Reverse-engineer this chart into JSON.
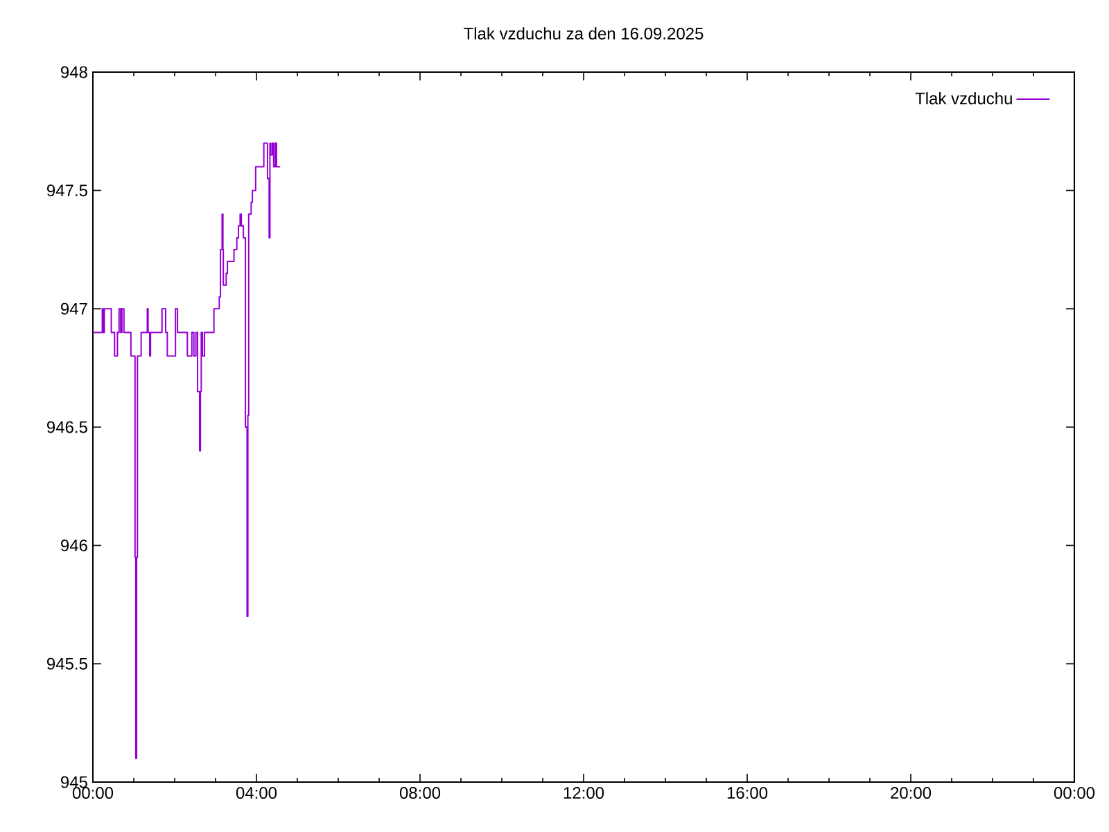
{
  "chart_data": {
    "type": "step",
    "title": "Tlak vzduchu za den 16.09.2025",
    "x": [
      0,
      0.23,
      0.25,
      0.28,
      0.45,
      0.53,
      0.6,
      0.64,
      0.68,
      0.71,
      0.76,
      0.93,
      1.03,
      1.05,
      1.07,
      1.09,
      1.18,
      1.33,
      1.35,
      1.39,
      1.41,
      1.69,
      1.78,
      1.82,
      2.02,
      2.07,
      2.31,
      2.42,
      2.47,
      2.52,
      2.56,
      2.61,
      2.63,
      2.65,
      2.68,
      2.73,
      2.96,
      3.09,
      3.12,
      3.16,
      3.18,
      3.19,
      3.26,
      3.29,
      3.45,
      3.52,
      3.56,
      3.6,
      3.63,
      3.68,
      3.73,
      3.77,
      3.79,
      3.81,
      3.87,
      3.9,
      3.98,
      4.18,
      4.27,
      4.31,
      4.33,
      4.35,
      4.39,
      4.42,
      4.46,
      4.49,
      4.58
    ],
    "series": [
      {
        "name": "Tlak vzduchu",
        "color": "#9400d3",
        "values": [
          946.9,
          947.0,
          946.9,
          947.0,
          946.9,
          946.8,
          946.9,
          947.0,
          946.9,
          947.0,
          946.9,
          946.8,
          945.95,
          945.1,
          945.95,
          946.8,
          946.9,
          947.0,
          946.9,
          946.8,
          946.9,
          947.0,
          946.9,
          946.8,
          947.0,
          946.9,
          946.8,
          946.9,
          946.8,
          946.9,
          946.65,
          946.4,
          946.65,
          946.9,
          946.8,
          946.9,
          947.0,
          947.05,
          947.25,
          947.4,
          947.25,
          947.1,
          947.15,
          947.2,
          947.25,
          947.3,
          947.35,
          947.4,
          947.35,
          947.3,
          946.5,
          945.7,
          946.55,
          947.4,
          947.45,
          947.5,
          947.6,
          947.7,
          947.55,
          947.3,
          947.7,
          947.65,
          947.7,
          947.6,
          947.7,
          947.6,
          947.6
        ]
      }
    ],
    "xlim": [
      0,
      24
    ],
    "xticks": [
      {
        "value": 0,
        "label": "00:00"
      },
      {
        "value": 4,
        "label": "04:00"
      },
      {
        "value": 8,
        "label": "08:00"
      },
      {
        "value": 12,
        "label": "12:00"
      },
      {
        "value": 16,
        "label": "16:00"
      },
      {
        "value": 20,
        "label": "20:00"
      },
      {
        "value": 24,
        "label": "00:00"
      }
    ],
    "ylim": [
      945,
      948
    ],
    "yticks": [
      945,
      945.5,
      946,
      946.5,
      947,
      947.5,
      948
    ],
    "legend": "top right",
    "grid": false
  }
}
